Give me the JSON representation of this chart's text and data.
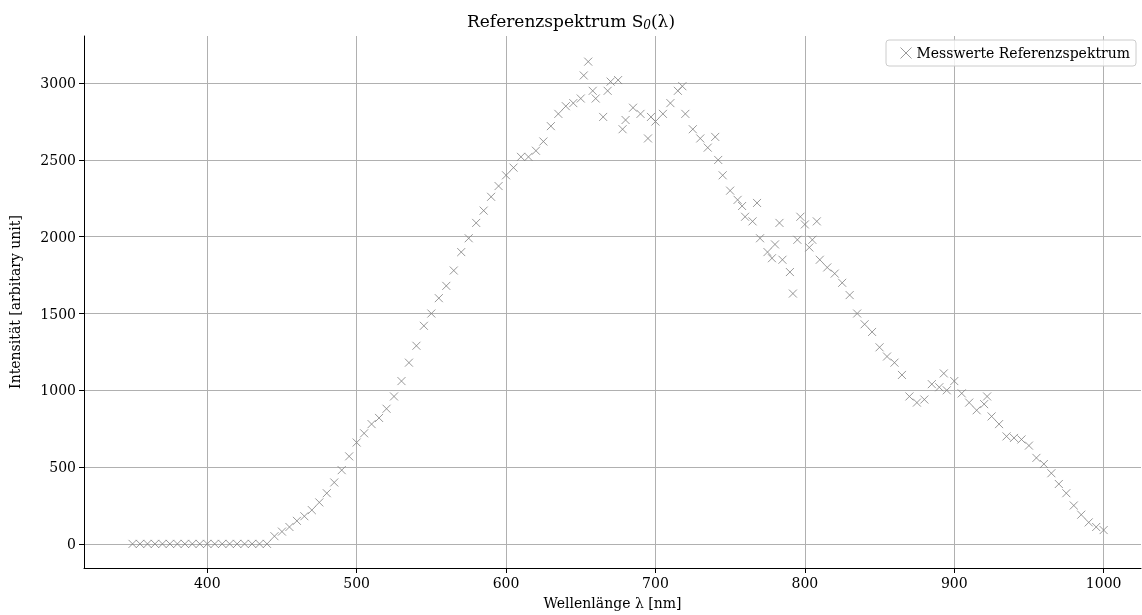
{
  "chart_data": {
    "type": "scatter",
    "title": "Referenzspektrum S$_{0}$(λ)",
    "xlabel": "Wellenlänge λ [nm]",
    "ylabel": "Intensität [arbitary unit]",
    "x": [
      350,
      355,
      360,
      365,
      370,
      375,
      380,
      385,
      390,
      395,
      400,
      405,
      410,
      415,
      420,
      425,
      430,
      435,
      440,
      445,
      450,
      455,
      460,
      465,
      470,
      475,
      480,
      485,
      490,
      495,
      500,
      505,
      510,
      515,
      520,
      525,
      530,
      535,
      540,
      545,
      550,
      555,
      560,
      565,
      570,
      575,
      580,
      585,
      590,
      595,
      600,
      605,
      610,
      615,
      620,
      625,
      630,
      635,
      640,
      645,
      650,
      652,
      655,
      658,
      660,
      665,
      668,
      670,
      675,
      678,
      680,
      685,
      690,
      695,
      697,
      700,
      705,
      710,
      715,
      718,
      720,
      725,
      730,
      735,
      740,
      742,
      745,
      750,
      755,
      758,
      760,
      765,
      768,
      770,
      775,
      778,
      780,
      783,
      785,
      790,
      792,
      795,
      797,
      800,
      803,
      805,
      808,
      810,
      815,
      820,
      825,
      830,
      835,
      840,
      845,
      850,
      855,
      860,
      865,
      870,
      875,
      880,
      885,
      890,
      893,
      895,
      900,
      905,
      910,
      915,
      920,
      922,
      925,
      930,
      935,
      940,
      945,
      950,
      955,
      960,
      965,
      970,
      975,
      980,
      985,
      990,
      995,
      1000
    ],
    "series": [
      {
        "name": "Messwerte Referenzspektrum",
        "color": "#808080",
        "values": [
          0,
          0,
          0,
          0,
          0,
          0,
          0,
          0,
          0,
          0,
          0,
          0,
          0,
          0,
          0,
          0,
          0,
          0,
          0,
          50,
          80,
          110,
          150,
          180,
          220,
          270,
          330,
          400,
          480,
          570,
          660,
          720,
          780,
          820,
          880,
          960,
          1060,
          1180,
          1290,
          1420,
          1500,
          1600,
          1680,
          1780,
          1900,
          1990,
          2090,
          2170,
          2260,
          2330,
          2400,
          2450,
          2520,
          2520,
          2560,
          2620,
          2720,
          2800,
          2850,
          2870,
          2900,
          3050,
          3140,
          2950,
          2900,
          2780,
          2950,
          3010,
          3020,
          2700,
          2760,
          2840,
          2800,
          2640,
          2780,
          2750,
          2800,
          2870,
          2950,
          2980,
          2800,
          2700,
          2640,
          2580,
          2650,
          2500,
          2400,
          2300,
          2240,
          2200,
          2130,
          2100,
          2220,
          1990,
          1900,
          1860,
          1950,
          2090,
          1850,
          1770,
          1630,
          1980,
          2130,
          2080,
          1930,
          1980,
          2100,
          1850,
          1800,
          1760,
          1700,
          1620,
          1500,
          1430,
          1380,
          1280,
          1220,
          1180,
          1100,
          960,
          920,
          940,
          1040,
          1020,
          1110,
          1000,
          1060,
          980,
          920,
          870,
          910,
          960,
          830,
          780,
          700,
          690,
          680,
          640,
          560,
          520,
          460,
          390,
          330,
          250,
          190,
          140,
          110,
          90
        ]
      }
    ],
    "xlim": [
      317.5,
      1025
    ],
    "ylim": [
      -157,
      3307
    ],
    "xticks": [
      400,
      500,
      600,
      700,
      800,
      900,
      1000
    ],
    "yticks": [
      0,
      500,
      1000,
      1500,
      2000,
      2500,
      3000
    ],
    "grid": true,
    "legend": "top right",
    "marker": "cross"
  }
}
